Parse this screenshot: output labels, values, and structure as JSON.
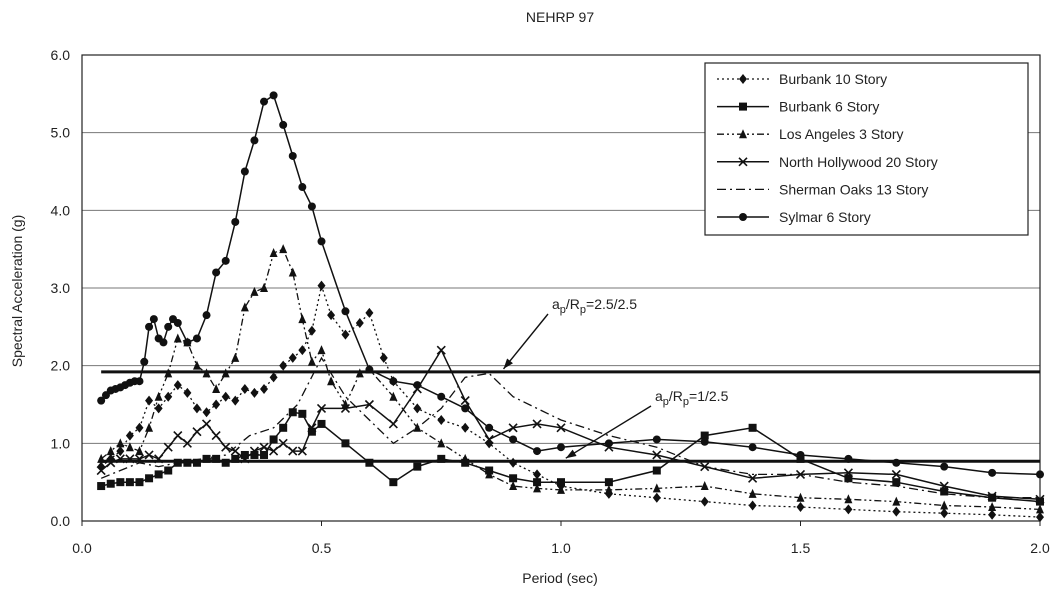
{
  "chart_data": {
    "type": "line",
    "title": "NEHRP 97",
    "xlabel": "Period (sec)",
    "ylabel": "Spectral Acceleration (g)",
    "xlim": [
      0.0,
      2.0
    ],
    "ylim": [
      0.0,
      6.0
    ],
    "x_ticks": [
      "0.0",
      "0.5",
      "1.0",
      "1.5",
      "2.0"
    ],
    "y_ticks": [
      "0.0",
      "1.0",
      "2.0",
      "3.0",
      "4.0",
      "5.0",
      "6.0"
    ],
    "grid": "horizontal",
    "legend_position": "top-right",
    "series": [
      {
        "name": "Burbank 10 Story",
        "style": "dotted",
        "marker": "diamond",
        "points": [
          [
            0.04,
            0.7
          ],
          [
            0.06,
            0.8
          ],
          [
            0.08,
            0.9
          ],
          [
            0.1,
            1.1
          ],
          [
            0.12,
            1.2
          ],
          [
            0.14,
            1.55
          ],
          [
            0.16,
            1.45
          ],
          [
            0.18,
            1.6
          ],
          [
            0.2,
            1.75
          ],
          [
            0.22,
            1.65
          ],
          [
            0.24,
            1.45
          ],
          [
            0.26,
            1.4
          ],
          [
            0.28,
            1.5
          ],
          [
            0.3,
            1.6
          ],
          [
            0.32,
            1.55
          ],
          [
            0.34,
            1.7
          ],
          [
            0.36,
            1.65
          ],
          [
            0.38,
            1.7
          ],
          [
            0.4,
            1.85
          ],
          [
            0.42,
            2.0
          ],
          [
            0.44,
            2.1
          ],
          [
            0.46,
            2.2
          ],
          [
            0.48,
            2.45
          ],
          [
            0.5,
            3.03
          ],
          [
            0.52,
            2.65
          ],
          [
            0.55,
            2.4
          ],
          [
            0.58,
            2.55
          ],
          [
            0.6,
            2.68
          ],
          [
            0.63,
            2.1
          ],
          [
            0.65,
            1.8
          ],
          [
            0.7,
            1.45
          ],
          [
            0.75,
            1.3
          ],
          [
            0.8,
            1.2
          ],
          [
            0.85,
            1.0
          ],
          [
            0.9,
            0.75
          ],
          [
            0.95,
            0.6
          ],
          [
            1.0,
            0.45
          ],
          [
            1.1,
            0.35
          ],
          [
            1.2,
            0.3
          ],
          [
            1.3,
            0.25
          ],
          [
            1.4,
            0.2
          ],
          [
            1.5,
            0.18
          ],
          [
            1.6,
            0.15
          ],
          [
            1.7,
            0.12
          ],
          [
            1.8,
            0.1
          ],
          [
            1.9,
            0.08
          ],
          [
            2.0,
            0.05
          ]
        ]
      },
      {
        "name": "Burbank 6 Story",
        "style": "solid",
        "marker": "square",
        "points": [
          [
            0.04,
            0.45
          ],
          [
            0.06,
            0.48
          ],
          [
            0.08,
            0.5
          ],
          [
            0.1,
            0.5
          ],
          [
            0.12,
            0.5
          ],
          [
            0.14,
            0.55
          ],
          [
            0.16,
            0.6
          ],
          [
            0.18,
            0.65
          ],
          [
            0.2,
            0.75
          ],
          [
            0.22,
            0.75
          ],
          [
            0.24,
            0.75
          ],
          [
            0.26,
            0.8
          ],
          [
            0.28,
            0.8
          ],
          [
            0.3,
            0.75
          ],
          [
            0.32,
            0.8
          ],
          [
            0.34,
            0.85
          ],
          [
            0.36,
            0.85
          ],
          [
            0.38,
            0.85
          ],
          [
            0.4,
            1.05
          ],
          [
            0.42,
            1.2
          ],
          [
            0.44,
            1.4
          ],
          [
            0.46,
            1.38
          ],
          [
            0.48,
            1.15
          ],
          [
            0.5,
            1.25
          ],
          [
            0.55,
            1.0
          ],
          [
            0.6,
            0.75
          ],
          [
            0.65,
            0.5
          ],
          [
            0.7,
            0.7
          ],
          [
            0.75,
            0.8
          ],
          [
            0.8,
            0.75
          ],
          [
            0.85,
            0.65
          ],
          [
            0.9,
            0.55
          ],
          [
            0.95,
            0.5
          ],
          [
            1.0,
            0.5
          ],
          [
            1.1,
            0.5
          ],
          [
            1.2,
            0.65
          ],
          [
            1.3,
            1.1
          ],
          [
            1.4,
            1.2
          ],
          [
            1.5,
            0.8
          ],
          [
            1.6,
            0.55
          ],
          [
            1.7,
            0.5
          ],
          [
            1.8,
            0.38
          ],
          [
            1.9,
            0.3
          ],
          [
            2.0,
            0.25
          ]
        ]
      },
      {
        "name": "Los Angeles 3 Story",
        "style": "dash-dot-dot",
        "marker": "triangle",
        "points": [
          [
            0.04,
            0.8
          ],
          [
            0.06,
            0.9
          ],
          [
            0.08,
            1.0
          ],
          [
            0.1,
            0.95
          ],
          [
            0.12,
            0.9
          ],
          [
            0.14,
            1.2
          ],
          [
            0.16,
            1.6
          ],
          [
            0.18,
            1.9
          ],
          [
            0.2,
            2.35
          ],
          [
            0.22,
            2.3
          ],
          [
            0.24,
            2.0
          ],
          [
            0.26,
            1.9
          ],
          [
            0.28,
            1.7
          ],
          [
            0.3,
            1.9
          ],
          [
            0.32,
            2.1
          ],
          [
            0.34,
            2.75
          ],
          [
            0.36,
            2.95
          ],
          [
            0.38,
            3.0
          ],
          [
            0.4,
            3.45
          ],
          [
            0.42,
            3.5
          ],
          [
            0.44,
            3.2
          ],
          [
            0.46,
            2.6
          ],
          [
            0.48,
            2.05
          ],
          [
            0.5,
            2.2
          ],
          [
            0.52,
            1.8
          ],
          [
            0.55,
            1.5
          ],
          [
            0.58,
            1.9
          ],
          [
            0.6,
            1.95
          ],
          [
            0.65,
            1.6
          ],
          [
            0.7,
            1.2
          ],
          [
            0.75,
            1.0
          ],
          [
            0.8,
            0.8
          ],
          [
            0.85,
            0.6
          ],
          [
            0.9,
            0.45
          ],
          [
            0.95,
            0.42
          ],
          [
            1.0,
            0.4
          ],
          [
            1.1,
            0.4
          ],
          [
            1.2,
            0.42
          ],
          [
            1.3,
            0.45
          ],
          [
            1.4,
            0.35
          ],
          [
            1.5,
            0.3
          ],
          [
            1.6,
            0.28
          ],
          [
            1.7,
            0.25
          ],
          [
            1.8,
            0.2
          ],
          [
            1.9,
            0.18
          ],
          [
            2.0,
            0.15
          ]
        ]
      },
      {
        "name": "North Hollywood 20 Story",
        "style": "solid",
        "marker": "x",
        "points": [
          [
            0.04,
            0.65
          ],
          [
            0.06,
            0.75
          ],
          [
            0.08,
            0.8
          ],
          [
            0.1,
            0.8
          ],
          [
            0.12,
            0.8
          ],
          [
            0.14,
            0.85
          ],
          [
            0.16,
            0.8
          ],
          [
            0.18,
            0.95
          ],
          [
            0.2,
            1.1
          ],
          [
            0.22,
            1.0
          ],
          [
            0.24,
            1.15
          ],
          [
            0.26,
            1.25
          ],
          [
            0.28,
            1.1
          ],
          [
            0.3,
            0.95
          ],
          [
            0.32,
            0.9
          ],
          [
            0.34,
            0.8
          ],
          [
            0.36,
            0.9
          ],
          [
            0.38,
            0.95
          ],
          [
            0.4,
            0.9
          ],
          [
            0.42,
            1.0
          ],
          [
            0.44,
            0.9
          ],
          [
            0.46,
            0.9
          ],
          [
            0.48,
            1.2
          ],
          [
            0.5,
            1.45
          ],
          [
            0.55,
            1.45
          ],
          [
            0.6,
            1.5
          ],
          [
            0.65,
            1.25
          ],
          [
            0.7,
            1.7
          ],
          [
            0.75,
            2.2
          ],
          [
            0.8,
            1.55
          ],
          [
            0.85,
            1.05
          ],
          [
            0.9,
            1.2
          ],
          [
            0.95,
            1.25
          ],
          [
            1.0,
            1.2
          ],
          [
            1.1,
            0.95
          ],
          [
            1.2,
            0.85
          ],
          [
            1.3,
            0.7
          ],
          [
            1.4,
            0.55
          ],
          [
            1.5,
            0.6
          ],
          [
            1.6,
            0.62
          ],
          [
            1.7,
            0.6
          ],
          [
            1.8,
            0.45
          ],
          [
            1.9,
            0.32
          ],
          [
            2.0,
            0.28
          ]
        ]
      },
      {
        "name": "Sherman Oaks 13 Story",
        "style": "dash-dot",
        "marker": "none",
        "points": [
          [
            0.04,
            0.55
          ],
          [
            0.08,
            0.65
          ],
          [
            0.12,
            0.75
          ],
          [
            0.16,
            0.7
          ],
          [
            0.2,
            0.75
          ],
          [
            0.25,
            0.8
          ],
          [
            0.3,
            0.85
          ],
          [
            0.35,
            1.1
          ],
          [
            0.4,
            1.2
          ],
          [
            0.45,
            1.5
          ],
          [
            0.5,
            2.1
          ],
          [
            0.55,
            1.6
          ],
          [
            0.6,
            1.3
          ],
          [
            0.65,
            1.0
          ],
          [
            0.7,
            1.2
          ],
          [
            0.75,
            1.45
          ],
          [
            0.8,
            1.85
          ],
          [
            0.85,
            1.9
          ],
          [
            0.9,
            1.6
          ],
          [
            0.95,
            1.45
          ],
          [
            1.0,
            1.3
          ],
          [
            1.1,
            1.1
          ],
          [
            1.2,
            0.95
          ],
          [
            1.3,
            0.7
          ],
          [
            1.4,
            0.6
          ],
          [
            1.5,
            0.6
          ],
          [
            1.6,
            0.5
          ],
          [
            1.7,
            0.45
          ],
          [
            1.8,
            0.35
          ],
          [
            1.9,
            0.3
          ],
          [
            2.0,
            0.3
          ]
        ]
      },
      {
        "name": "Sylmar 6 Story",
        "style": "solid",
        "marker": "circle",
        "points": [
          [
            0.04,
            1.55
          ],
          [
            0.05,
            1.62
          ],
          [
            0.06,
            1.68
          ],
          [
            0.07,
            1.7
          ],
          [
            0.08,
            1.72
          ],
          [
            0.09,
            1.75
          ],
          [
            0.1,
            1.78
          ],
          [
            0.11,
            1.8
          ],
          [
            0.12,
            1.8
          ],
          [
            0.13,
            2.05
          ],
          [
            0.14,
            2.5
          ],
          [
            0.15,
            2.6
          ],
          [
            0.16,
            2.35
          ],
          [
            0.17,
            2.3
          ],
          [
            0.18,
            2.5
          ],
          [
            0.19,
            2.6
          ],
          [
            0.2,
            2.55
          ],
          [
            0.22,
            2.3
          ],
          [
            0.24,
            2.35
          ],
          [
            0.26,
            2.65
          ],
          [
            0.28,
            3.2
          ],
          [
            0.3,
            3.35
          ],
          [
            0.32,
            3.85
          ],
          [
            0.34,
            4.5
          ],
          [
            0.36,
            4.9
          ],
          [
            0.38,
            5.4
          ],
          [
            0.4,
            5.48
          ],
          [
            0.42,
            5.1
          ],
          [
            0.44,
            4.7
          ],
          [
            0.46,
            4.3
          ],
          [
            0.48,
            4.05
          ],
          [
            0.5,
            3.6
          ],
          [
            0.55,
            2.7
          ],
          [
            0.6,
            1.95
          ],
          [
            0.65,
            1.8
          ],
          [
            0.7,
            1.75
          ],
          [
            0.75,
            1.6
          ],
          [
            0.8,
            1.45
          ],
          [
            0.85,
            1.2
          ],
          [
            0.9,
            1.05
          ],
          [
            0.95,
            0.9
          ],
          [
            1.0,
            0.95
          ],
          [
            1.1,
            1.0
          ],
          [
            1.2,
            1.05
          ],
          [
            1.3,
            1.02
          ],
          [
            1.4,
            0.95
          ],
          [
            1.5,
            0.85
          ],
          [
            1.6,
            0.8
          ],
          [
            1.7,
            0.75
          ],
          [
            1.8,
            0.7
          ],
          [
            1.9,
            0.62
          ],
          [
            2.0,
            0.6
          ]
        ]
      }
    ],
    "reference_lines": [
      {
        "y": 1.92,
        "label_base": "a",
        "label_base_sub": "p",
        "label_mid": "/R",
        "label_mid_sub": "p",
        "label_value": "=2.5/2.5",
        "arrow_to_x": 0.88
      },
      {
        "y": 0.77,
        "label_base": "a",
        "label_base_sub": "p",
        "label_mid": "/R",
        "label_mid_sub": "p",
        "label_value": "=1/2.5",
        "arrow_to_x": 1.01
      }
    ]
  }
}
